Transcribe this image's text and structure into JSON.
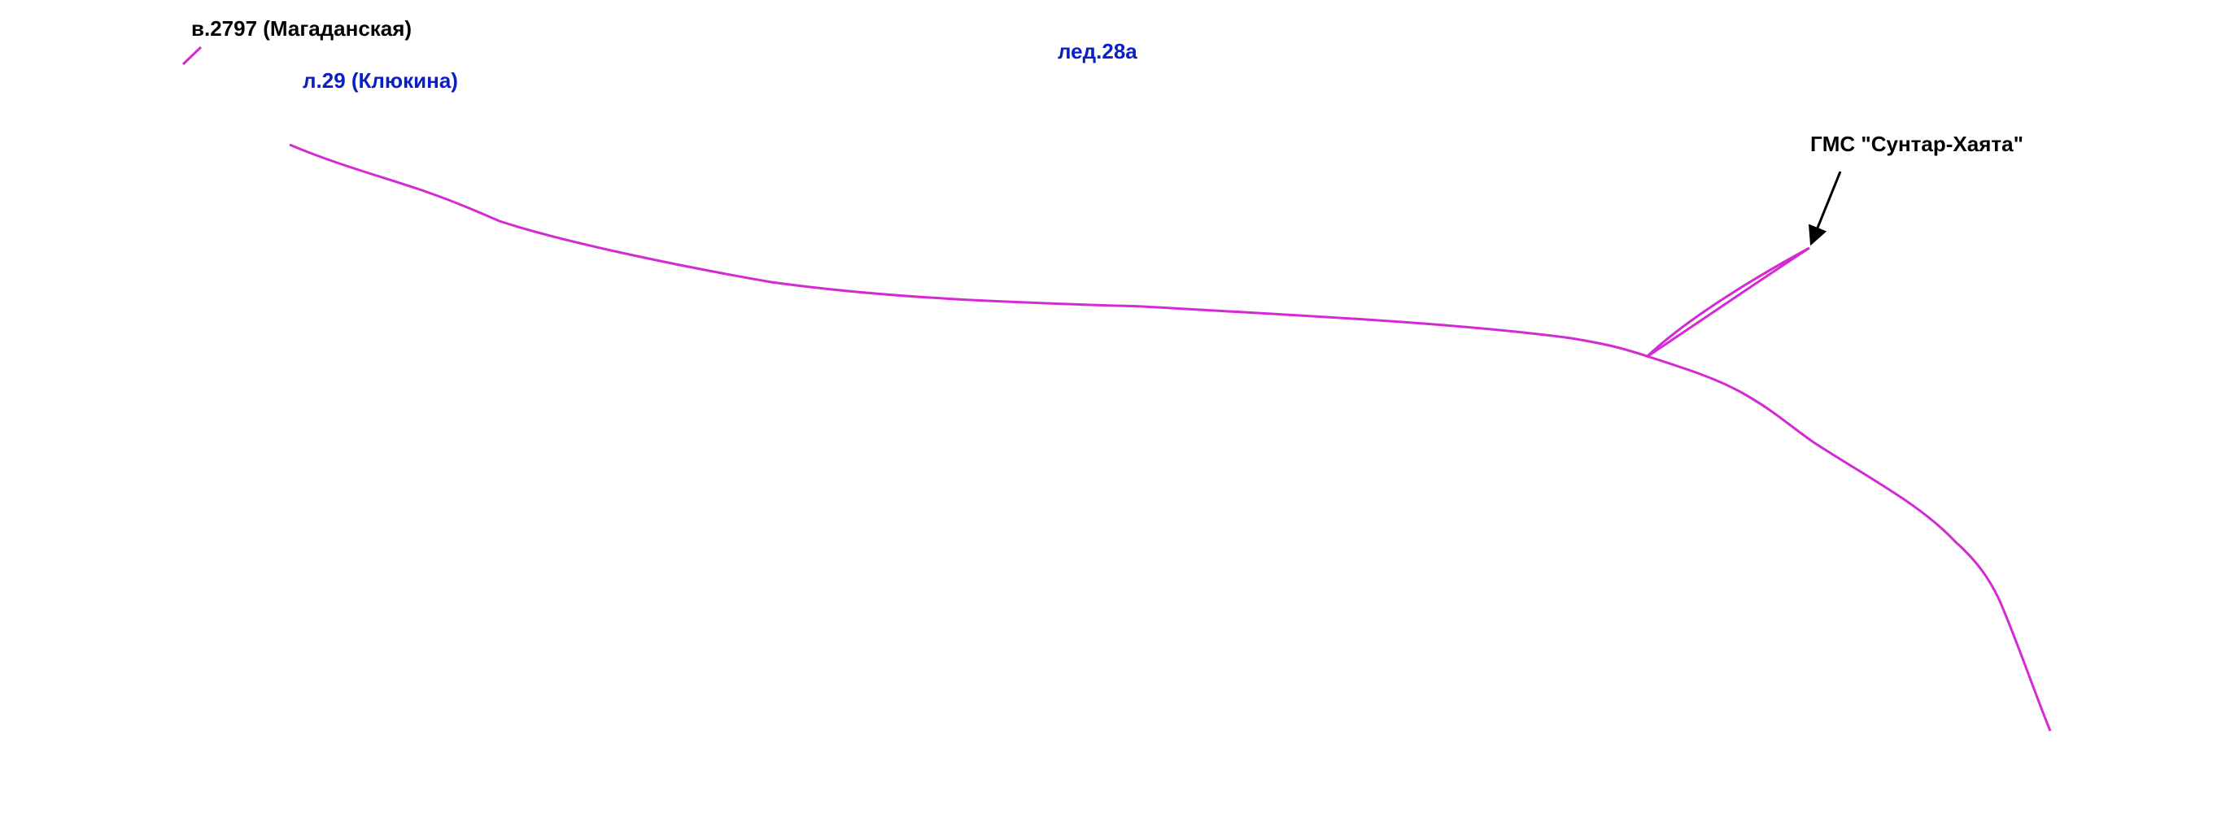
{
  "labels": {
    "peak": "в.2797 (Магаданская)",
    "glacier": "л.29 (Клюкина)",
    "ice": "лед.28а",
    "station": "ГМС \"Сунтар-Хаята\""
  }
}
